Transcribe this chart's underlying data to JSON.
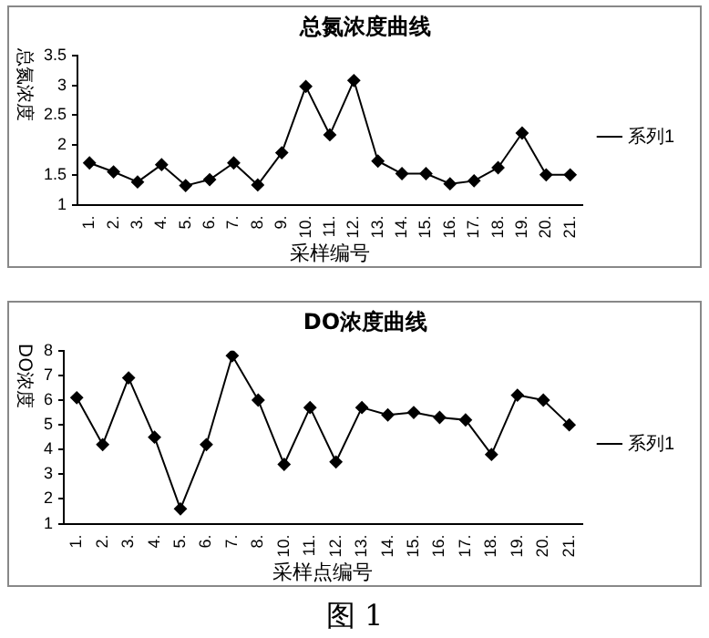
{
  "chart_data": [
    {
      "type": "line",
      "title": "总氮浓度曲线",
      "xlabel": "采样编号",
      "ylabel": "总氮浓度",
      "categories": [
        "1.",
        "2.",
        "3.",
        "4.",
        "5.",
        "6.",
        "7.",
        "8.",
        "9.",
        "10.",
        "11.",
        "12.",
        "13.",
        "14.",
        "15.",
        "16.",
        "17.",
        "18.",
        "19.",
        "20.",
        "21."
      ],
      "series": [
        {
          "name": "系列1",
          "color": "#000000",
          "values": [
            1.7,
            1.55,
            1.38,
            1.67,
            1.32,
            1.42,
            1.7,
            1.33,
            1.87,
            2.98,
            2.17,
            3.08,
            1.73,
            1.52,
            1.52,
            1.35,
            1.4,
            1.62,
            2.2,
            1.5,
            1.5
          ]
        }
      ],
      "ylim": [
        1,
        3.5
      ],
      "yticks": [
        1,
        1.5,
        2,
        2.5,
        3,
        3.5
      ],
      "grid": false,
      "legend": "right",
      "marker": "diamond",
      "line_style": "solid"
    },
    {
      "type": "line",
      "title": "DO浓度曲线",
      "xlabel": "采样点编号",
      "ylabel": "DO浓度",
      "categories": [
        "1.",
        "2.",
        "3.",
        "4.",
        "5.",
        "6.",
        "7.",
        "8.",
        "10.",
        "11.",
        "12.",
        "13.",
        "14.",
        "15.",
        "16.",
        "17.",
        "18.",
        "19.",
        "20.",
        "21."
      ],
      "series": [
        {
          "name": "系列1",
          "color": "#000000",
          "values": [
            6.1,
            4.2,
            6.9,
            4.5,
            1.6,
            4.2,
            7.8,
            6.0,
            3.4,
            5.7,
            3.5,
            5.7,
            5.4,
            5.5,
            5.3,
            5.2,
            3.8,
            6.2,
            6.0,
            5.0
          ]
        }
      ],
      "ylim": [
        1,
        8
      ],
      "yticks": [
        1,
        2,
        3,
        4,
        5,
        6,
        7,
        8
      ],
      "grid": false,
      "legend": "right",
      "marker": "diamond",
      "line_style": "solid",
      "annotations": [
        "图 1"
      ]
    }
  ]
}
